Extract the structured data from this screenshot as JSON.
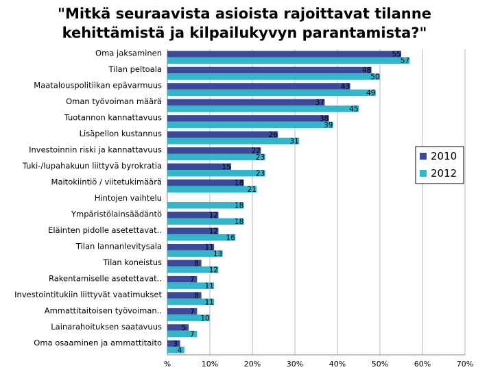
{
  "chart_data": {
    "type": "bar",
    "orientation": "horizontal",
    "title": "\"Mitkä seuraavista asioista rajoittavat tilanne\nkehittämistä ja kilpailukyvyn parantamista?\"",
    "xlabel": "",
    "ylabel": "",
    "xlim": [
      0,
      70
    ],
    "x_ticks": [
      "%",
      "10%",
      "20%",
      "30%",
      "40%",
      "50%",
      "60%",
      "70%"
    ],
    "grid": "vertical",
    "legend_position": "right",
    "categories": [
      "Oma jaksaminen",
      "Tilan peltoala",
      "Maatalouspolitiikan epävarmuus",
      "Oman työvoiman määrä",
      "Tuotannon kannattavuus",
      "Lisäpellon kustannus",
      "Investoinnin riski ja kannattavuus",
      "Tuki-/lupahakuun liittyvä byrokratia",
      "Maitokiintiö / viitetukimäärä",
      "Hintojen vaihtelu",
      "Ympäristölainsäädäntö",
      "Eläinten pidolle asetettavat..",
      "Tilan lannanlevitysala",
      "Tilan koneistus",
      "Rakentamiselle asetettavat..",
      "Investointitukiin liittyvät vaatimukset",
      "Ammattitaitoisen työvoiman..",
      "Lainarahoituksen saatavuus",
      "Oma osaaminen ja ammattitaito"
    ],
    "series": [
      {
        "name": "2010",
        "color": "#3a4a99",
        "values": [
          55,
          48,
          43,
          37,
          38,
          26,
          22,
          15,
          18,
          null,
          12,
          12,
          11,
          8,
          7,
          8,
          7,
          5,
          3
        ]
      },
      {
        "name": "2012",
        "color": "#35b5c9",
        "values": [
          57,
          50,
          49,
          45,
          39,
          31,
          23,
          23,
          21,
          18,
          18,
          16,
          13,
          12,
          11,
          11,
          10,
          7,
          4
        ]
      }
    ]
  }
}
